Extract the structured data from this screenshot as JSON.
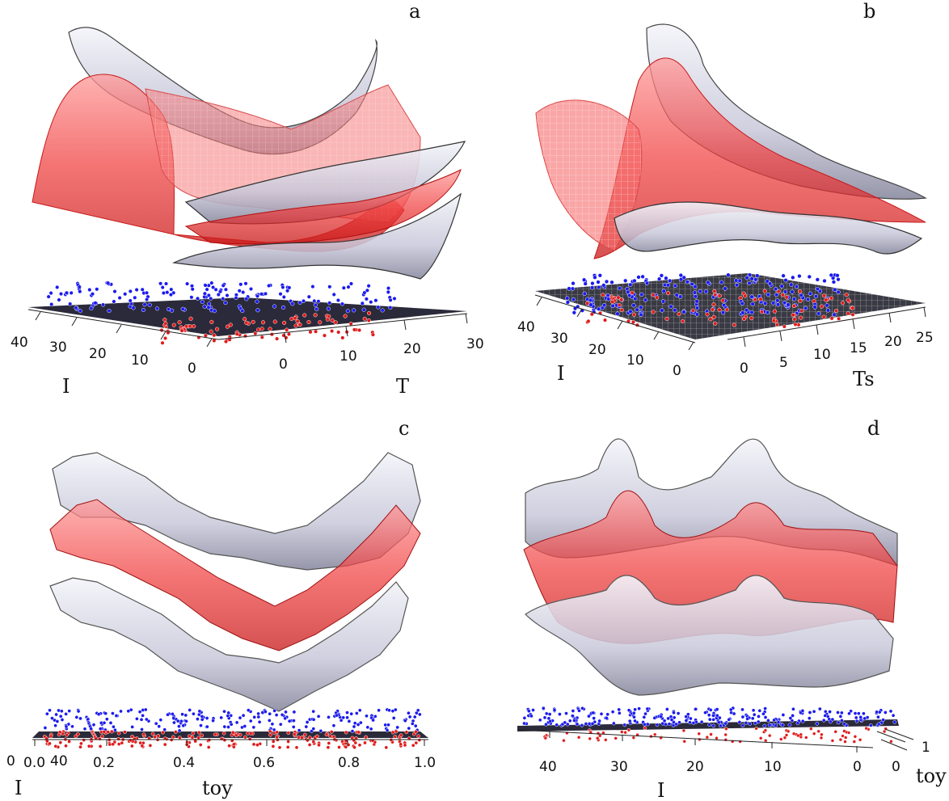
{
  "chart_data": [
    {
      "type": "surface-3d",
      "panel": "a",
      "description_axes": [
        "I",
        "T"
      ],
      "xlabel": "I",
      "ylabel": "T",
      "x_ticks": [
        "40",
        "30",
        "20",
        "10",
        "0"
      ],
      "y_ticks": [
        "0",
        "10",
        "20",
        "30"
      ],
      "series": [
        {
          "name": "blue-points",
          "color": "#1a1aee"
        },
        {
          "name": "red-points",
          "color": "#e01a1a"
        },
        {
          "name": "red-surface",
          "color": "#f03a3a"
        },
        {
          "name": "grey-surface",
          "color": "#c8c8d8"
        }
      ]
    },
    {
      "type": "surface-3d",
      "panel": "b",
      "xlabel": "I",
      "ylabel": "Ts",
      "x_ticks": [
        "40",
        "30",
        "20",
        "10",
        "0"
      ],
      "y_ticks": [
        "0",
        "5",
        "10",
        "15",
        "20",
        "25"
      ],
      "series": [
        {
          "name": "blue-points",
          "color": "#1a1aee"
        },
        {
          "name": "red-points",
          "color": "#e01a1a"
        },
        {
          "name": "red-surface",
          "color": "#f03a3a"
        },
        {
          "name": "grey-surface",
          "color": "#c8c8d8"
        }
      ]
    },
    {
      "type": "surface-3d",
      "panel": "c",
      "xlabel": "I",
      "ylabel": "toy",
      "x_ticks": [
        "0",
        "40"
      ],
      "y_ticks": [
        "0.0",
        "0.2",
        "0.4",
        "0.6",
        "0.8",
        "1.0"
      ],
      "series": [
        {
          "name": "blue-points",
          "color": "#1a1aee"
        },
        {
          "name": "red-points",
          "color": "#e01a1a"
        },
        {
          "name": "red-surface",
          "color": "#f03a3a"
        },
        {
          "name": "grey-surface",
          "color": "#c8c8d8"
        }
      ]
    },
    {
      "type": "surface-3d",
      "panel": "d",
      "xlabel": "I",
      "ylabel": "toy",
      "x_ticks": [
        "40",
        "30",
        "20",
        "10",
        "0"
      ],
      "y_ticks": [
        "0",
        "1"
      ],
      "series": [
        {
          "name": "blue-points",
          "color": "#1a1aee"
        },
        {
          "name": "red-points",
          "color": "#e01a1a"
        },
        {
          "name": "red-surface",
          "color": "#f03a3a"
        },
        {
          "name": "grey-surface",
          "color": "#c8c8d8"
        }
      ]
    }
  ],
  "panels": {
    "a": {
      "label": "a",
      "xlabel": "I",
      "ylabel": "T",
      "i_ticks": [
        "40",
        "30",
        "20",
        "10",
        "0"
      ],
      "t_ticks": [
        "0",
        "10",
        "20",
        "30"
      ]
    },
    "b": {
      "label": "b",
      "xlabel": "I",
      "ylabel": "Ts",
      "i_ticks": [
        "40",
        "30",
        "20",
        "10",
        "0"
      ],
      "t_ticks": [
        "0",
        "5",
        "10",
        "15",
        "20",
        "25"
      ]
    },
    "c": {
      "label": "c",
      "xlabel": "I",
      "ylabel": "toy",
      "i_ticks": [
        "0",
        "40"
      ],
      "t_ticks": [
        "0.0",
        "0.2",
        "0.4",
        "0.6",
        "0.8",
        "1.0"
      ]
    },
    "d": {
      "label": "d",
      "xlabel": "I",
      "ylabel": "toy",
      "i_ticks": [
        "40",
        "30",
        "20",
        "10",
        "0"
      ],
      "t_ticks": [
        "0",
        "1"
      ]
    }
  },
  "colors": {
    "blue_points": "#1a1aee",
    "red_points": "#e01a1a",
    "red_surface": "#f03a3a",
    "grey_surface": "#c8c8d8",
    "plane": "#2a2a3a"
  }
}
